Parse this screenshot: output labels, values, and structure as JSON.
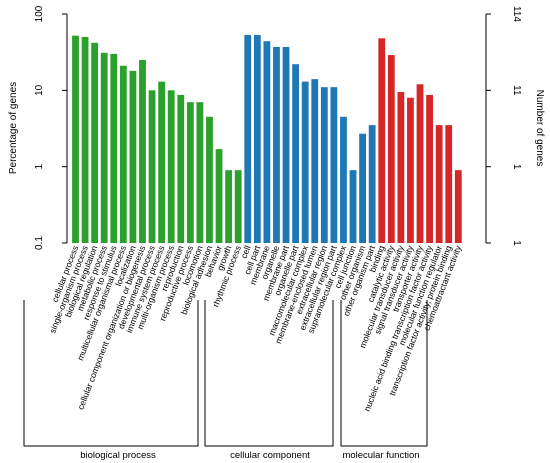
{
  "chart_data": {
    "type": "bar",
    "yscale": "log",
    "ylabel": "Percentage of genes",
    "y2label": "Number of genes",
    "ylim": [
      0.1,
      100
    ],
    "yticks": [
      "0.1",
      "1",
      "10",
      "100"
    ],
    "y2ticks": [
      "1",
      "1",
      "11",
      "114"
    ],
    "grid": false,
    "legend": "none",
    "groups": [
      {
        "name": "biological process",
        "color": "#2ca02c",
        "categories": [
          "cellular process",
          "single-organism process",
          "biological regulation",
          "metabolic process",
          "response to stimulus",
          "multicellular organismal process",
          "localization",
          "cellular component organization or biogenesis",
          "developmental process",
          "immune system process",
          "multi-organism process",
          "reproduction",
          "reproductive process",
          "locomotion",
          "biological adhesion",
          "behavior",
          "growth",
          "rhythmic process"
        ],
        "values": [
          52,
          50,
          42,
          31,
          30,
          21,
          18,
          25,
          10,
          13,
          10,
          8.7,
          7,
          7,
          4.5,
          1.7,
          0.9,
          0.9
        ]
      },
      {
        "name": "cellular component",
        "color": "#1f77b4",
        "categories": [
          "cell",
          "cell part",
          "membrane",
          "organelle",
          "membrane part",
          "organelle part",
          "macromolecular complex",
          "membrane-enclosed lumen",
          "extracellular region",
          "extracellular region part",
          "supramolecular complex",
          "cell junction",
          "other organism",
          "other organism part"
        ],
        "values": [
          53,
          53,
          44,
          37,
          37,
          22,
          13,
          14,
          11,
          11,
          4.5,
          0.9,
          2.7,
          3.5
        ]
      },
      {
        "name": "molecular function",
        "color": "#d62728",
        "categories": [
          "binding",
          "catalytic activity",
          "molecular transducer activity",
          "signal transducer activity",
          "transporter activity",
          "nucleic acid binding transcription factor activity",
          "molecular function regulator",
          "transcription factor activity, protein binding",
          "chemoattractant activity"
        ],
        "values": [
          48,
          29,
          9.5,
          8,
          12,
          8.7,
          3.5,
          3.5,
          0.9
        ]
      }
    ]
  }
}
